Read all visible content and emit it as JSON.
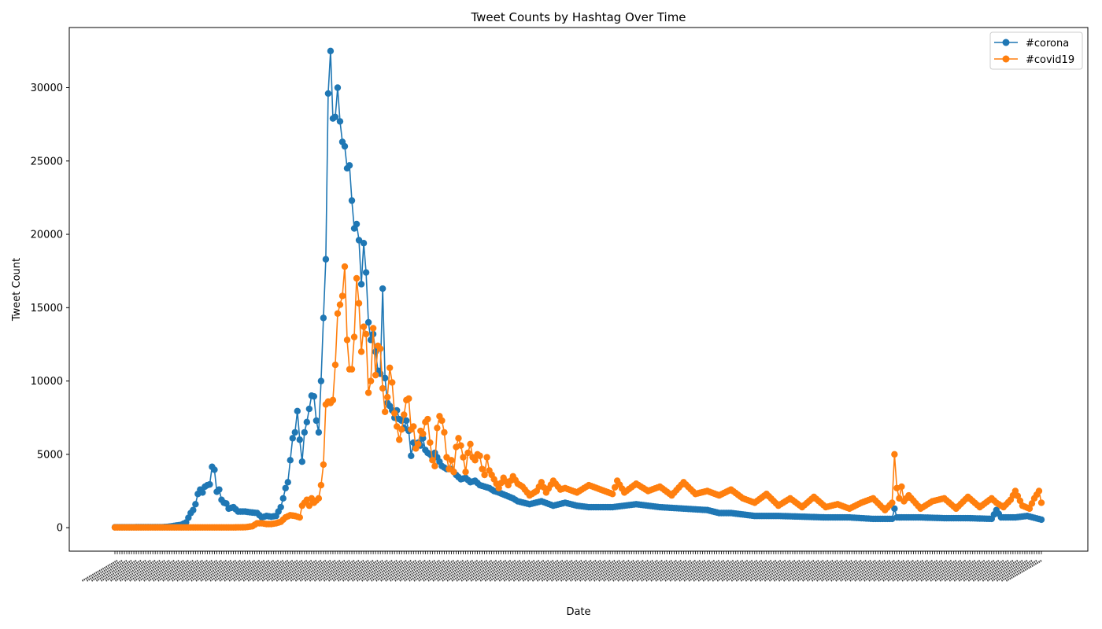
{
  "chart_data": {
    "type": "line",
    "title": "Tweet Counts by Hashtag Over Time",
    "xlabel": "Date",
    "ylabel": "Tweet Count",
    "ylim": [
      -1600,
      34100
    ],
    "yticks": [
      0,
      5000,
      10000,
      15000,
      20000,
      25000,
      30000
    ],
    "grid": false,
    "legend_position": "top-right",
    "markers": "circle",
    "x_index_range": [
      0,
      391
    ],
    "x_tick_labels_note": "392 date tick labels are drawn rotated at the bottom; they overlap and are illegible",
    "series": [
      {
        "name": "#corona",
        "color": "#1f77b4",
        "keypoints": [
          [
            0,
            30
          ],
          [
            20,
            40
          ],
          [
            22,
            60
          ],
          [
            24,
            100
          ],
          [
            26,
            150
          ],
          [
            28,
            200
          ],
          [
            30,
            350
          ],
          [
            32,
            1000
          ],
          [
            33,
            1200
          ],
          [
            34,
            1600
          ],
          [
            35,
            2300
          ],
          [
            36,
            2600
          ],
          [
            37,
            2400
          ],
          [
            38,
            2800
          ],
          [
            39,
            2900
          ],
          [
            40,
            2950
          ],
          [
            41,
            4150
          ],
          [
            42,
            3950
          ],
          [
            43,
            2450
          ],
          [
            44,
            2600
          ],
          [
            45,
            1900
          ],
          [
            46,
            1700
          ],
          [
            47,
            1650
          ],
          [
            48,
            1300
          ],
          [
            50,
            1400
          ],
          [
            52,
            1100
          ],
          [
            55,
            1100
          ],
          [
            57,
            1050
          ],
          [
            60,
            1000
          ],
          [
            62,
            700
          ],
          [
            64,
            800
          ],
          [
            66,
            750
          ],
          [
            68,
            800
          ],
          [
            70,
            1400
          ],
          [
            71,
            2000
          ],
          [
            72,
            2700
          ],
          [
            73,
            3100
          ],
          [
            74,
            4600
          ],
          [
            75,
            6100
          ],
          [
            76,
            6500
          ],
          [
            77,
            7950
          ],
          [
            78,
            6000
          ],
          [
            79,
            4500
          ],
          [
            80,
            6500
          ],
          [
            81,
            7200
          ],
          [
            82,
            8100
          ],
          [
            83,
            9000
          ],
          [
            84,
            8950
          ],
          [
            85,
            7300
          ],
          [
            86,
            6500
          ],
          [
            87,
            10000
          ],
          [
            88,
            14300
          ],
          [
            89,
            18300
          ],
          [
            90,
            29600
          ],
          [
            91,
            32500
          ],
          [
            92,
            27900
          ],
          [
            93,
            28000
          ],
          [
            94,
            30000
          ],
          [
            95,
            27700
          ],
          [
            96,
            26300
          ],
          [
            97,
            26000
          ],
          [
            98,
            24500
          ],
          [
            99,
            24700
          ],
          [
            100,
            22300
          ],
          [
            101,
            20400
          ],
          [
            102,
            20700
          ],
          [
            103,
            19600
          ],
          [
            104,
            16600
          ],
          [
            105,
            19400
          ],
          [
            106,
            17400
          ],
          [
            107,
            14000
          ],
          [
            108,
            12800
          ],
          [
            109,
            13200
          ],
          [
            110,
            12000
          ],
          [
            111,
            10700
          ],
          [
            112,
            10500
          ],
          [
            113,
            16300
          ],
          [
            114,
            10200
          ],
          [
            115,
            8500
          ],
          [
            116,
            8300
          ],
          [
            117,
            8000
          ],
          [
            118,
            7500
          ],
          [
            119,
            8000
          ],
          [
            120,
            7400
          ],
          [
            121,
            7300
          ],
          [
            122,
            6800
          ],
          [
            123,
            7300
          ],
          [
            124,
            6600
          ],
          [
            125,
            4900
          ],
          [
            126,
            5800
          ],
          [
            127,
            5600
          ],
          [
            128,
            5800
          ],
          [
            129,
            5600
          ],
          [
            130,
            6100
          ],
          [
            131,
            5300
          ],
          [
            132,
            5100
          ],
          [
            133,
            5000
          ],
          [
            134,
            4800
          ],
          [
            135,
            5100
          ],
          [
            136,
            4800
          ],
          [
            137,
            4500
          ],
          [
            138,
            4200
          ],
          [
            140,
            4000
          ],
          [
            142,
            4000
          ],
          [
            144,
            3600
          ],
          [
            146,
            3300
          ],
          [
            148,
            3400
          ],
          [
            150,
            3100
          ],
          [
            152,
            3200
          ],
          [
            154,
            2900
          ],
          [
            156,
            2800
          ],
          [
            158,
            2700
          ],
          [
            160,
            2500
          ],
          [
            162,
            2400
          ],
          [
            165,
            2200
          ],
          [
            168,
            2000
          ],
          [
            170,
            1800
          ],
          [
            175,
            1600
          ],
          [
            180,
            1800
          ],
          [
            185,
            1500
          ],
          [
            190,
            1700
          ],
          [
            195,
            1500
          ],
          [
            200,
            1400
          ],
          [
            210,
            1400
          ],
          [
            220,
            1600
          ],
          [
            230,
            1400
          ],
          [
            240,
            1300
          ],
          [
            250,
            1200
          ],
          [
            255,
            1000
          ],
          [
            260,
            1000
          ],
          [
            265,
            900
          ],
          [
            270,
            800
          ],
          [
            280,
            800
          ],
          [
            290,
            750
          ],
          [
            300,
            700
          ],
          [
            310,
            700
          ],
          [
            320,
            600
          ],
          [
            328,
            600
          ],
          [
            329,
            1300
          ],
          [
            330,
            700
          ],
          [
            340,
            700
          ],
          [
            350,
            650
          ],
          [
            360,
            650
          ],
          [
            370,
            600
          ],
          [
            372,
            1200
          ],
          [
            374,
            700
          ],
          [
            380,
            700
          ],
          [
            385,
            800
          ],
          [
            391,
            550
          ]
        ]
      },
      {
        "name": "#covid19",
        "color": "#ff7f0e",
        "keypoints": [
          [
            0,
            20
          ],
          [
            20,
            20
          ],
          [
            40,
            20
          ],
          [
            50,
            20
          ],
          [
            55,
            30
          ],
          [
            58,
            100
          ],
          [
            60,
            300
          ],
          [
            62,
            300
          ],
          [
            64,
            250
          ],
          [
            66,
            250
          ],
          [
            68,
            300
          ],
          [
            70,
            400
          ],
          [
            72,
            700
          ],
          [
            74,
            850
          ],
          [
            76,
            800
          ],
          [
            78,
            700
          ],
          [
            79,
            1500
          ],
          [
            80,
            1700
          ],
          [
            81,
            1900
          ],
          [
            82,
            1500
          ],
          [
            83,
            2000
          ],
          [
            84,
            1700
          ],
          [
            86,
            2000
          ],
          [
            87,
            2900
          ],
          [
            88,
            4300
          ],
          [
            89,
            8400
          ],
          [
            90,
            8600
          ],
          [
            91,
            8500
          ],
          [
            92,
            8700
          ],
          [
            93,
            11100
          ],
          [
            94,
            14600
          ],
          [
            95,
            15200
          ],
          [
            96,
            15800
          ],
          [
            97,
            17800
          ],
          [
            98,
            12800
          ],
          [
            99,
            10800
          ],
          [
            100,
            10800
          ],
          [
            101,
            13000
          ],
          [
            102,
            17000
          ],
          [
            103,
            15300
          ],
          [
            104,
            12000
          ],
          [
            105,
            13700
          ],
          [
            106,
            13200
          ],
          [
            107,
            9200
          ],
          [
            108,
            10000
          ],
          [
            109,
            13600
          ],
          [
            110,
            10400
          ],
          [
            111,
            12400
          ],
          [
            112,
            12200
          ],
          [
            113,
            9500
          ],
          [
            114,
            7900
          ],
          [
            115,
            8900
          ],
          [
            116,
            10900
          ],
          [
            117,
            9900
          ],
          [
            118,
            7800
          ],
          [
            119,
            6900
          ],
          [
            120,
            6000
          ],
          [
            121,
            6700
          ],
          [
            122,
            7700
          ],
          [
            123,
            8700
          ],
          [
            124,
            8800
          ],
          [
            125,
            6700
          ],
          [
            126,
            6900
          ],
          [
            127,
            5400
          ],
          [
            128,
            5700
          ],
          [
            129,
            6600
          ],
          [
            130,
            6400
          ],
          [
            131,
            7200
          ],
          [
            132,
            7400
          ],
          [
            133,
            5800
          ],
          [
            134,
            4600
          ],
          [
            135,
            4200
          ],
          [
            136,
            6800
          ],
          [
            137,
            7600
          ],
          [
            138,
            7300
          ],
          [
            139,
            6500
          ],
          [
            140,
            4800
          ],
          [
            141,
            4000
          ],
          [
            142,
            4600
          ],
          [
            143,
            3800
          ],
          [
            144,
            5500
          ],
          [
            145,
            6100
          ],
          [
            146,
            5600
          ],
          [
            147,
            4800
          ],
          [
            148,
            3800
          ],
          [
            149,
            5100
          ],
          [
            150,
            5700
          ],
          [
            151,
            4800
          ],
          [
            152,
            4600
          ],
          [
            153,
            5000
          ],
          [
            154,
            4900
          ],
          [
            155,
            4000
          ],
          [
            156,
            3600
          ],
          [
            157,
            4800
          ],
          [
            158,
            3900
          ],
          [
            160,
            3300
          ],
          [
            162,
            2700
          ],
          [
            164,
            3400
          ],
          [
            166,
            2900
          ],
          [
            168,
            3500
          ],
          [
            170,
            3000
          ],
          [
            172,
            2800
          ],
          [
            175,
            2200
          ],
          [
            178,
            2500
          ],
          [
            180,
            3100
          ],
          [
            182,
            2400
          ],
          [
            185,
            3200
          ],
          [
            188,
            2600
          ],
          [
            190,
            2700
          ],
          [
            195,
            2400
          ],
          [
            200,
            2900
          ],
          [
            205,
            2600
          ],
          [
            210,
            2300
          ],
          [
            212,
            3200
          ],
          [
            215,
            2400
          ],
          [
            220,
            3000
          ],
          [
            225,
            2500
          ],
          [
            230,
            2800
          ],
          [
            235,
            2200
          ],
          [
            240,
            3100
          ],
          [
            245,
            2300
          ],
          [
            250,
            2500
          ],
          [
            255,
            2200
          ],
          [
            260,
            2600
          ],
          [
            265,
            2000
          ],
          [
            270,
            1700
          ],
          [
            275,
            2300
          ],
          [
            280,
            1500
          ],
          [
            285,
            2000
          ],
          [
            290,
            1400
          ],
          [
            295,
            2100
          ],
          [
            300,
            1400
          ],
          [
            305,
            1600
          ],
          [
            310,
            1300
          ],
          [
            315,
            1700
          ],
          [
            320,
            2000
          ],
          [
            325,
            1200
          ],
          [
            328,
            1700
          ],
          [
            329,
            5000
          ],
          [
            330,
            2700
          ],
          [
            331,
            2000
          ],
          [
            332,
            2800
          ],
          [
            333,
            1800
          ],
          [
            335,
            2200
          ],
          [
            340,
            1300
          ],
          [
            345,
            1800
          ],
          [
            350,
            2000
          ],
          [
            355,
            1300
          ],
          [
            360,
            2100
          ],
          [
            365,
            1400
          ],
          [
            370,
            2000
          ],
          [
            372,
            1700
          ],
          [
            375,
            1400
          ],
          [
            378,
            1900
          ],
          [
            380,
            2500
          ],
          [
            383,
            1500
          ],
          [
            386,
            1300
          ],
          [
            388,
            2000
          ],
          [
            390,
            2500
          ],
          [
            391,
            1700
          ]
        ]
      }
    ]
  }
}
